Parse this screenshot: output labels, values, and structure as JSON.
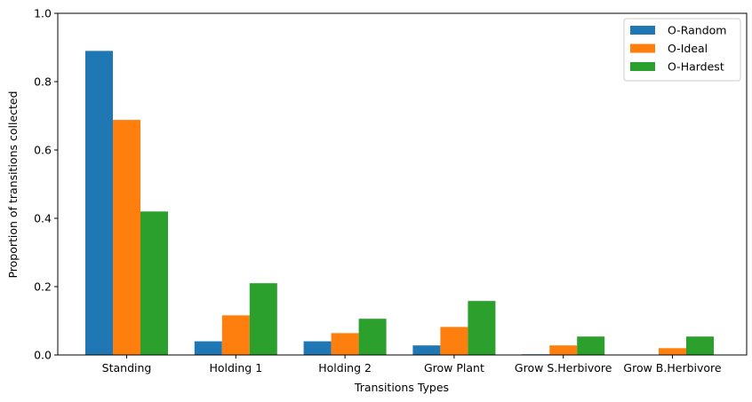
{
  "chart_data": {
    "type": "bar",
    "title": "",
    "xlabel": "Transitions Types",
    "ylabel": "Proportion of transitions collected",
    "ylim": [
      0,
      1.0
    ],
    "yticks": [
      "0.0",
      "0.2",
      "0.4",
      "0.6",
      "0.8",
      "1.0"
    ],
    "categories": [
      "Standing",
      "Holding 1",
      "Holding 2",
      "Grow Plant",
      "Grow S.Herbivore",
      "Grow B.Herbivore"
    ],
    "series": [
      {
        "name": "O-Random",
        "color": "#1f77b4",
        "values": [
          0.89,
          0.04,
          0.04,
          0.028,
          0.002,
          0.0
        ]
      },
      {
        "name": "O-Ideal",
        "color": "#ff7f0e",
        "values": [
          0.688,
          0.116,
          0.064,
          0.082,
          0.028,
          0.02
        ]
      },
      {
        "name": "O-Hardest",
        "color": "#2ca02c",
        "values": [
          0.42,
          0.21,
          0.106,
          0.158,
          0.054,
          0.054
        ]
      }
    ],
    "legend_position": "top-right",
    "grid": false
  }
}
